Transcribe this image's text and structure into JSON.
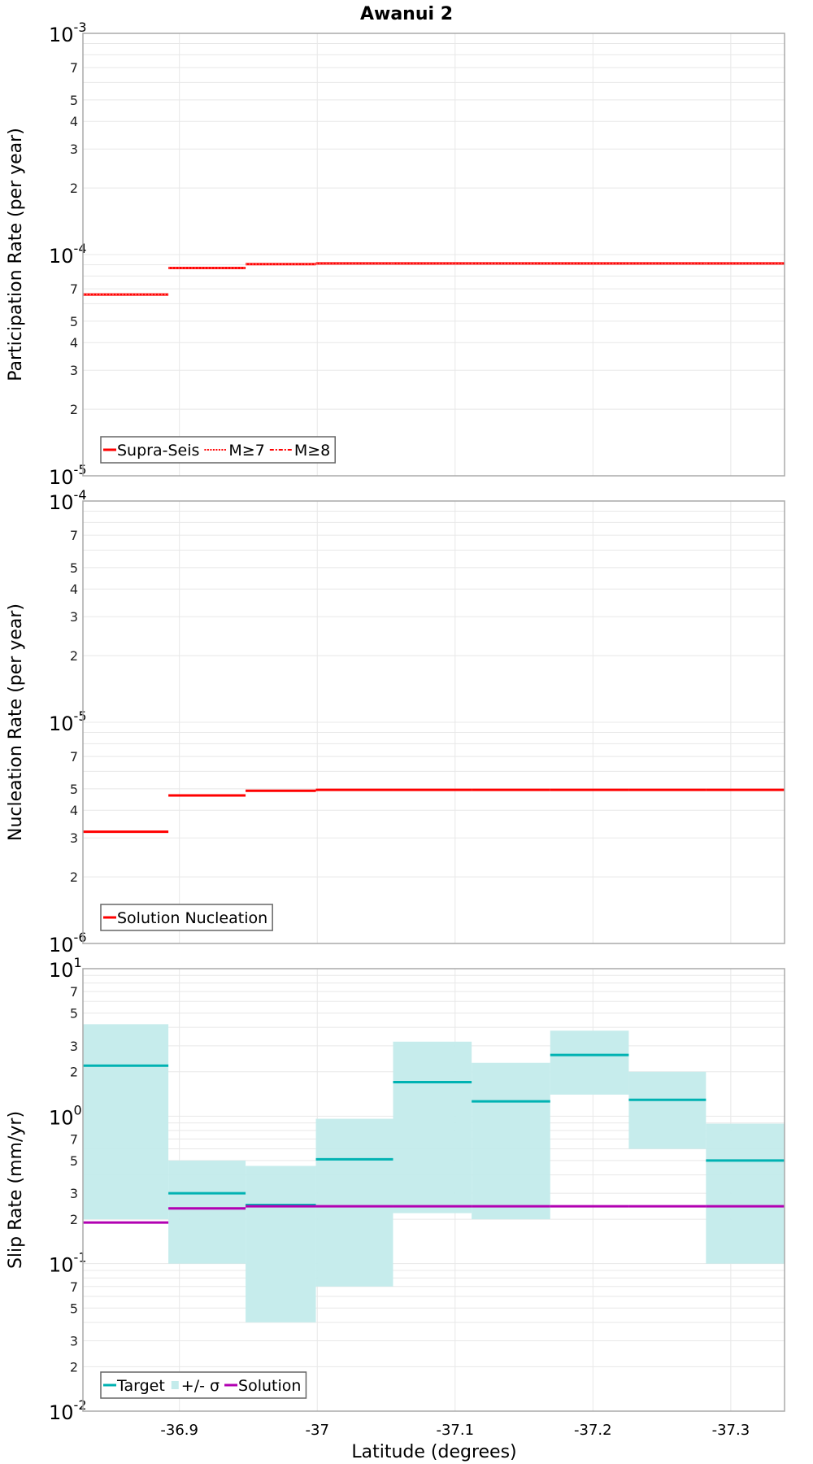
{
  "title": "Awanui 2",
  "colors": {
    "supra_seis": "#ff0000",
    "nucleation": "#ff0000",
    "target": "#00b2b2",
    "sigma_band": "#c3ebeb",
    "solution": "#b200b2",
    "grid": "#e8e8e8",
    "frame": "#aaaaaa"
  },
  "x_axis": {
    "label": "Latitude (degrees)",
    "ticks": [
      -36.9,
      -37.0,
      -37.1,
      -37.2,
      -37.3
    ],
    "tick_labels": [
      "-36.9",
      "-37",
      "-37.1",
      "-37.2",
      "-37.3"
    ],
    "range": [
      -36.83,
      -37.339
    ]
  },
  "chart_data": [
    {
      "type": "line",
      "title": "Awanui 2",
      "ylabel": "Participation Rate (per year)",
      "xlabel": "Latitude (degrees)",
      "yscale": "log",
      "ylim": [
        1e-05,
        0.001
      ],
      "major_tick_labels": [
        {
          "base": "10",
          "exp": "-3"
        },
        {
          "base": "10",
          "exp": "-4"
        },
        {
          "base": "10",
          "exp": "-5"
        }
      ],
      "minor_tick_labels": [
        "2",
        "3",
        "4",
        "5",
        "7"
      ],
      "grid": true,
      "legend_position": "lower-left",
      "legend": [
        "Supra-Seis",
        "M≥7",
        "M≥8"
      ],
      "bin_edges": [
        -36.83,
        -36.892,
        -36.948,
        -36.999,
        -37.055,
        -37.112,
        -37.169,
        -37.226,
        -37.282,
        -37.339
      ],
      "series": [
        {
          "name": "Supra-Seis",
          "style": "solid",
          "values": [
            6.6e-05,
            8.7e-05,
            9.05e-05,
            9.12e-05,
            9.12e-05,
            9.12e-05,
            9.12e-05,
            9.12e-05,
            9.12e-05
          ]
        },
        {
          "name": "M≥7",
          "style": "dotted",
          "values": [
            6.6e-05,
            8.7e-05,
            9.05e-05,
            9.12e-05,
            9.12e-05,
            9.12e-05,
            9.12e-05,
            9.12e-05,
            9.12e-05
          ]
        },
        {
          "name": "M≥8",
          "style": "dashdot",
          "values": []
        }
      ]
    },
    {
      "type": "line",
      "ylabel": "Nucleation Rate (per year)",
      "yscale": "log",
      "ylim": [
        1e-06,
        0.0001
      ],
      "major_tick_labels": [
        {
          "base": "10",
          "exp": "-4"
        },
        {
          "base": "10",
          "exp": "-5"
        },
        {
          "base": "10",
          "exp": "-6"
        }
      ],
      "minor_tick_labels": [
        "2",
        "3",
        "4",
        "5",
        "7"
      ],
      "grid": true,
      "legend_position": "lower-left",
      "legend": [
        "Solution Nucleation"
      ],
      "bin_edges": [
        -36.83,
        -36.892,
        -36.948,
        -36.999,
        -37.055,
        -37.112,
        -37.169,
        -37.226,
        -37.282,
        -37.339
      ],
      "series": [
        {
          "name": "Solution Nucleation",
          "style": "solid",
          "values": [
            3.2e-06,
            4.67e-06,
            4.9e-06,
            4.95e-06,
            4.95e-06,
            4.95e-06,
            4.95e-06,
            4.95e-06,
            4.95e-06
          ]
        }
      ]
    },
    {
      "type": "line",
      "ylabel": "Slip Rate (mm/yr)",
      "xlabel": "Latitude (degrees)",
      "yscale": "log",
      "ylim": [
        0.01,
        10
      ],
      "major_tick_labels": [
        {
          "base": "10",
          "exp": "1"
        },
        {
          "base": "10",
          "exp": "0"
        },
        {
          "base": "10",
          "exp": "-1"
        },
        {
          "base": "10",
          "exp": "-2"
        }
      ],
      "minor_tick_labels": [
        "2",
        "3",
        "5",
        "7"
      ],
      "grid": true,
      "legend_position": "lower-left",
      "legend": [
        "Target",
        "+/- σ",
        "Solution"
      ],
      "bin_edges": [
        -36.83,
        -36.892,
        -36.948,
        -36.999,
        -37.055,
        -37.112,
        -37.169,
        -37.226,
        -37.282,
        -37.339
      ],
      "series": [
        {
          "name": "Target",
          "style": "solid",
          "values": [
            2.2,
            0.3,
            0.25,
            0.51,
            1.7,
            1.26,
            2.6,
            1.29,
            0.5
          ]
        },
        {
          "name": "+/- σ upper",
          "style": "band",
          "values": [
            4.2,
            0.5,
            0.46,
            0.96,
            3.2,
            2.3,
            3.8,
            2.0,
            0.89
          ]
        },
        {
          "name": "+/- σ lower",
          "style": "band",
          "values": [
            0.2,
            0.1,
            0.04,
            0.07,
            0.22,
            0.2,
            1.4,
            0.6,
            0.1
          ]
        },
        {
          "name": "Solution",
          "style": "solid",
          "values": [
            0.19,
            0.237,
            0.245,
            0.245,
            0.245,
            0.245,
            0.245,
            0.245,
            0.245
          ]
        }
      ]
    }
  ]
}
